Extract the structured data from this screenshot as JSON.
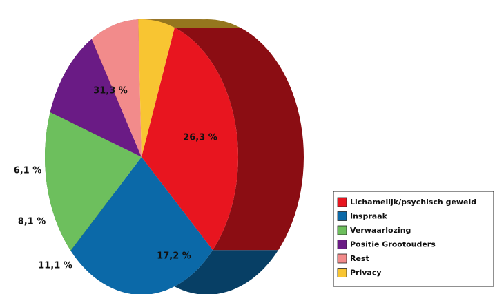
{
  "chart_data": {
    "type": "pie",
    "categories": [
      "Lichamelijk/psychisch geweld",
      "Inspraak",
      "Verwaarlozing",
      "Positie Grootouders",
      "Rest",
      "Privacy"
    ],
    "values": [
      31.3,
      26.3,
      17.2,
      11.1,
      8.1,
      6.1
    ],
    "value_labels": [
      "31,3 %",
      "26,3 %",
      "17,2 %",
      "11,1 %",
      "8,1 %",
      "6,1 %"
    ],
    "colors": [
      "#e8151f",
      "#0b69a8",
      "#6dbf5d",
      "#6a1b85",
      "#f28b8b",
      "#f8c532"
    ],
    "legend": "right"
  }
}
